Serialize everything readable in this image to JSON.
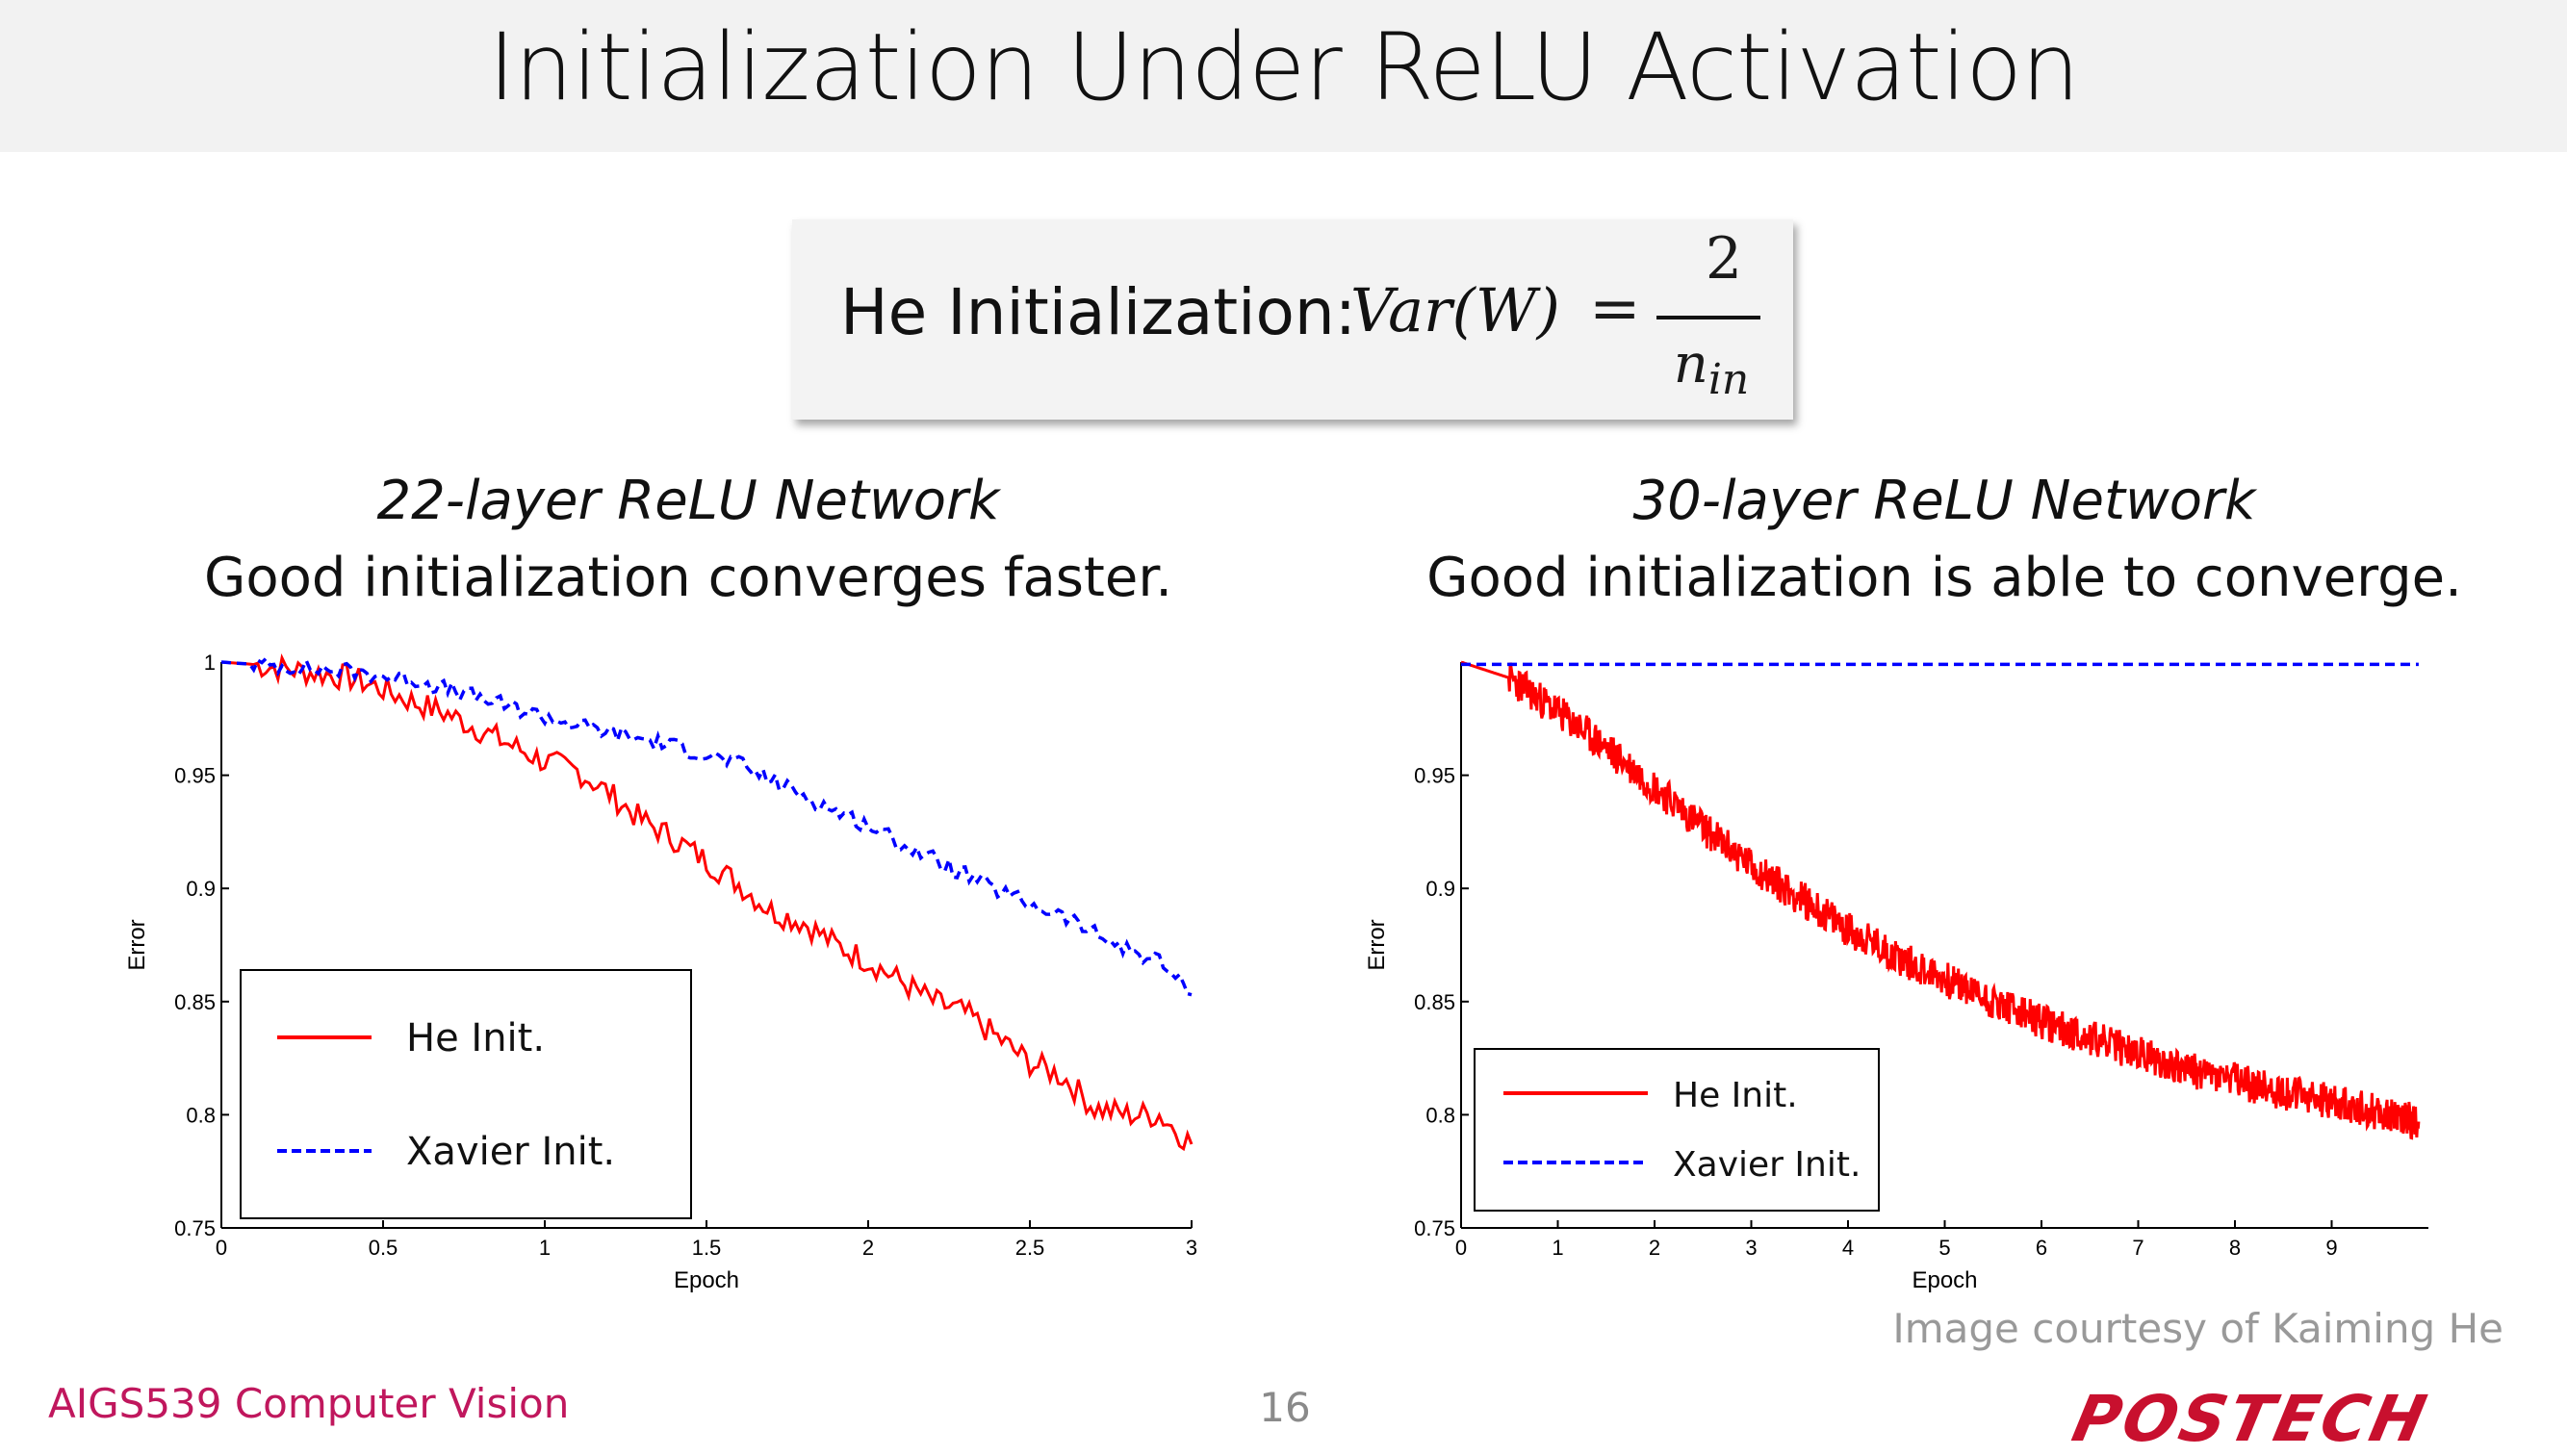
{
  "slide": {
    "title": "Initialization Under ReLU Activation",
    "formula": {
      "label": "He Initialization:",
      "lhs": "Var(W)",
      "equals": "=",
      "numerator": "2",
      "denominator": "n_in"
    },
    "left_panel": {
      "heading": "22-layer ReLU Network",
      "caption": "Good initialization converges faster."
    },
    "right_panel": {
      "heading": "30-layer ReLU Network",
      "caption": "Good initialization is able to converge."
    },
    "courtesy": "Image courtesy of Kaiming He",
    "course": "AIGS539 Computer Vision",
    "page_number": "16",
    "logo_text": "POSTECH"
  },
  "colors": {
    "title_band": "#f2f2f2",
    "course_text": "#c0175d",
    "logo": "#c8102e",
    "he_series": "#ff0000",
    "xavier_series": "#0000ff"
  },
  "chart_data": [
    {
      "type": "line",
      "xlabel": "Epoch",
      "ylabel": "Error",
      "xlim": [
        0,
        3
      ],
      "ylim": [
        0.75,
        1
      ],
      "xticks": [
        0,
        0.5,
        1,
        1.5,
        2,
        2.5,
        3
      ],
      "xtick_labels": [
        "0",
        "0.5",
        "1",
        "1.5",
        "2",
        "2.5",
        "3"
      ],
      "yticks": [
        0.75,
        0.8,
        0.85,
        0.9,
        0.95,
        1
      ],
      "ytick_labels": [
        "0.75",
        "0.8",
        "0.85",
        "0.9",
        "0.95",
        "1"
      ],
      "legend_position": "bottom-left",
      "series": [
        {
          "name": "He Init.",
          "style": "solid",
          "color": "#ff0000",
          "x": [
            0,
            0.1,
            0.2,
            0.3,
            0.4,
            0.5,
            0.6,
            0.7,
            0.8,
            0.9,
            1.0,
            1.1,
            1.2,
            1.3,
            1.4,
            1.5,
            1.6,
            1.7,
            1.8,
            1.9,
            2.0,
            2.1,
            2.2,
            2.3,
            2.4,
            2.5,
            2.6,
            2.7,
            2.8,
            2.9,
            3.0
          ],
          "y": [
            1.0,
            0.999,
            0.997,
            0.995,
            0.993,
            0.988,
            0.982,
            0.977,
            0.97,
            0.963,
            0.956,
            0.952,
            0.942,
            0.93,
            0.922,
            0.912,
            0.902,
            0.89,
            0.885,
            0.875,
            0.868,
            0.859,
            0.85,
            0.845,
            0.834,
            0.823,
            0.817,
            0.803,
            0.8,
            0.8,
            0.787
          ]
        },
        {
          "name": "Xavier Init.",
          "style": "dashed",
          "color": "#0000ff",
          "x": [
            0,
            0.1,
            0.2,
            0.3,
            0.4,
            0.5,
            0.6,
            0.7,
            0.8,
            0.9,
            1.0,
            1.1,
            1.2,
            1.3,
            1.4,
            1.5,
            1.6,
            1.7,
            1.8,
            1.9,
            2.0,
            2.1,
            2.2,
            2.3,
            2.4,
            2.5,
            2.6,
            2.7,
            2.8,
            2.9,
            3.0
          ],
          "y": [
            1.0,
            0.999,
            0.998,
            0.997,
            0.996,
            0.994,
            0.992,
            0.988,
            0.984,
            0.98,
            0.976,
            0.972,
            0.969,
            0.966,
            0.963,
            0.959,
            0.955,
            0.948,
            0.941,
            0.934,
            0.928,
            0.92,
            0.913,
            0.906,
            0.899,
            0.893,
            0.888,
            0.88,
            0.873,
            0.868,
            0.853
          ]
        }
      ]
    },
    {
      "type": "line",
      "xlabel": "Epoch",
      "ylabel": "Error",
      "xlim": [
        0,
        10
      ],
      "ylim": [
        0.75,
        1
      ],
      "xticks": [
        0,
        1,
        2,
        3,
        4,
        5,
        6,
        7,
        8,
        9
      ],
      "xtick_labels": [
        "0",
        "1",
        "2",
        "3",
        "4",
        "5",
        "6",
        "7",
        "8",
        "9"
      ],
      "yticks": [
        0.75,
        0.8,
        0.85,
        0.9,
        0.95
      ],
      "ytick_labels": [
        "0.75",
        "0.8",
        "0.85",
        "0.9",
        "0.95"
      ],
      "legend_position": "bottom-left",
      "series": [
        {
          "name": "He Init.",
          "style": "solid",
          "color": "#ff0000",
          "x": [
            0,
            0.5,
            1,
            1.5,
            2,
            2.5,
            3,
            3.5,
            4,
            4.5,
            5,
            5.5,
            6,
            6.5,
            7,
            7.5,
            8,
            8.5,
            9,
            9.5,
            9.9
          ],
          "y": [
            1.0,
            0.993,
            0.978,
            0.962,
            0.945,
            0.927,
            0.91,
            0.896,
            0.882,
            0.87,
            0.86,
            0.85,
            0.841,
            0.834,
            0.827,
            0.82,
            0.815,
            0.81,
            0.806,
            0.801,
            0.797
          ]
        },
        {
          "name": "Xavier Init.",
          "style": "dashed",
          "color": "#0000ff",
          "x": [
            0,
            9.9
          ],
          "y": [
            0.999,
            0.999
          ]
        }
      ]
    }
  ]
}
